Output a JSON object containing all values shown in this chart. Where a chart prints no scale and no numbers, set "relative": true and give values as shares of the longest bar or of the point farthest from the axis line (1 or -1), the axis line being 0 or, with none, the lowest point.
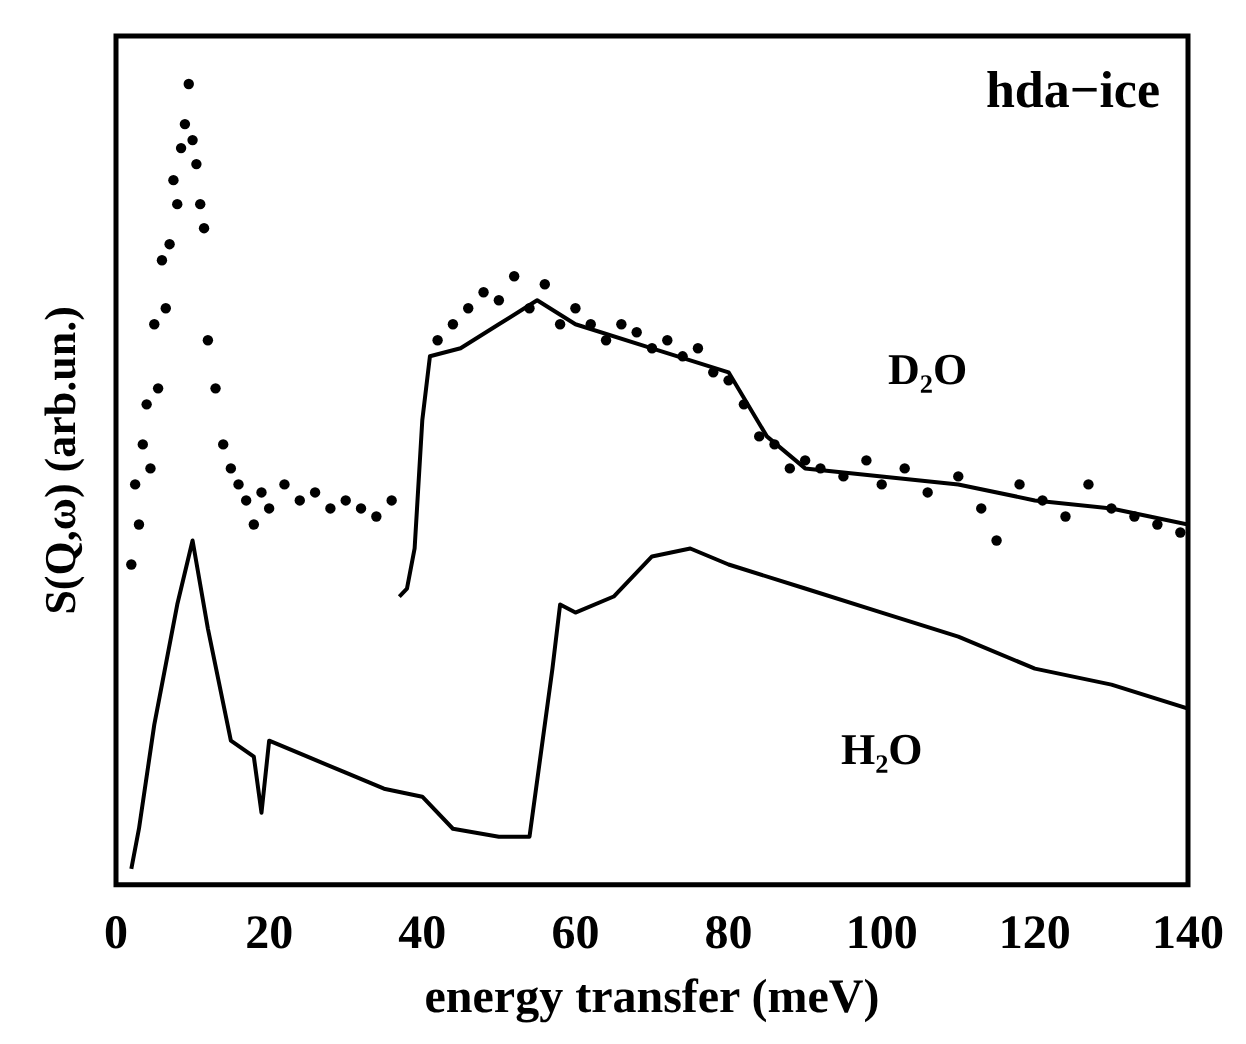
{
  "chart_data": {
    "type": "line",
    "title": "hda−ice",
    "xlabel": "energy transfer (meV)",
    "ylabel": "S(Q,ω) (arb.un.)",
    "relative": true,
    "legend": false,
    "grid": false,
    "xlim": [
      0,
      140
    ],
    "xticks": [
      0,
      20,
      40,
      60,
      80,
      100,
      120,
      140
    ],
    "series": [
      {
        "type": "scatter",
        "name": "D₂O",
        "color": "#000000",
        "marker": "circle",
        "x": [
          2,
          2.5,
          3,
          3.5,
          4,
          4.5,
          5,
          5.5,
          6,
          6.5,
          7,
          7.5,
          8,
          8.5,
          9,
          9.5,
          10,
          10.5,
          11,
          11.5,
          12,
          13,
          14,
          15,
          16,
          17,
          18,
          19,
          20,
          22,
          24,
          26,
          28,
          30,
          32,
          34,
          36,
          42,
          44,
          46,
          48,
          50,
          52,
          54,
          56,
          58,
          60,
          62,
          64,
          66,
          68,
          70,
          72,
          74,
          76,
          78,
          80,
          82,
          84,
          86,
          88,
          90,
          92,
          95,
          98,
          100,
          103,
          106,
          110,
          113,
          115,
          118,
          121,
          124,
          127,
          130,
          133,
          136,
          139
        ],
        "values": [
          0.4,
          0.5,
          0.45,
          0.55,
          0.6,
          0.52,
          0.7,
          0.62,
          0.78,
          0.72,
          0.8,
          0.88,
          0.85,
          0.92,
          0.95,
          1,
          0.93,
          0.9,
          0.85,
          0.82,
          0.68,
          0.62,
          0.55,
          0.52,
          0.5,
          0.48,
          0.45,
          0.49,
          0.47,
          0.5,
          0.48,
          0.49,
          0.47,
          0.48,
          0.47,
          0.46,
          0.48,
          0.68,
          0.7,
          0.72,
          0.74,
          0.73,
          0.76,
          0.72,
          0.75,
          0.7,
          0.72,
          0.7,
          0.68,
          0.7,
          0.69,
          0.67,
          0.68,
          0.66,
          0.67,
          0.64,
          0.63,
          0.6,
          0.56,
          0.55,
          0.52,
          0.53,
          0.52,
          0.51,
          0.53,
          0.5,
          0.52,
          0.49,
          0.51,
          0.47,
          0.43,
          0.5,
          0.48,
          0.46,
          0.5,
          0.47,
          0.46,
          0.45,
          0.44
        ]
      },
      {
        "color": "#000000",
        "x": [
          37,
          38,
          39,
          40,
          41,
          45,
          50,
          55,
          60,
          70,
          80,
          85,
          90,
          100,
          110,
          120,
          130,
          135,
          140
        ],
        "values": [
          0.36,
          0.37,
          0.42,
          0.58,
          0.66,
          0.67,
          0.7,
          0.73,
          0.7,
          0.67,
          0.64,
          0.56,
          0.52,
          0.51,
          0.5,
          0.48,
          0.47,
          0.46,
          0.45
        ]
      },
      {
        "name": "H₂O",
        "color": "#000000",
        "x": [
          2,
          3,
          5,
          8,
          10,
          12,
          15,
          18,
          19,
          20,
          25,
          30,
          35,
          40,
          44,
          50,
          54,
          57,
          58,
          60,
          65,
          70,
          75,
          80,
          90,
          100,
          110,
          120,
          130,
          140
        ],
        "values": [
          0.02,
          0.07,
          0.2,
          0.35,
          0.43,
          0.32,
          0.18,
          0.16,
          0.09,
          0.18,
          0.16,
          0.14,
          0.12,
          0.11,
          0.07,
          0.06,
          0.06,
          0.27,
          0.35,
          0.34,
          0.36,
          0.41,
          0.42,
          0.4,
          0.37,
          0.34,
          0.31,
          0.27,
          0.25,
          0.22
        ]
      }
    ]
  }
}
